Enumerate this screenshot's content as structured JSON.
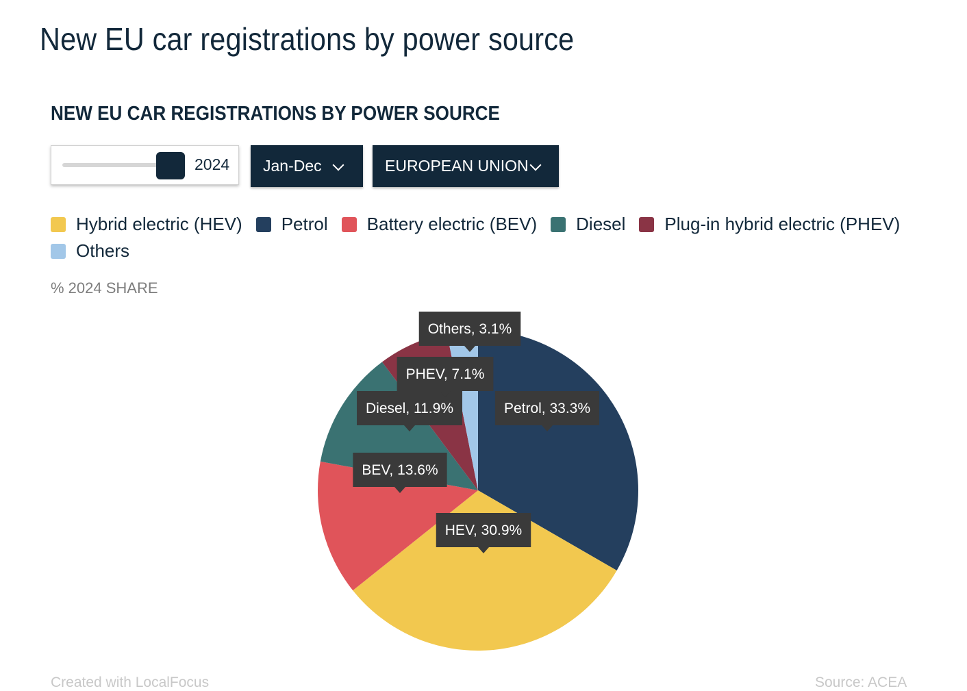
{
  "page": {
    "title": "New EU car registrations by power source"
  },
  "chart_title": "NEW EU CAR REGISTRATIONS BY POWER SOURCE",
  "controls": {
    "year_value": "2024",
    "period_label": "Jan-Dec",
    "region_label": "EUROPEAN UNION"
  },
  "legend": [
    {
      "label": "Hybrid electric (HEV)",
      "color": "#f2c84f"
    },
    {
      "label": "Petrol",
      "color": "#243f5e"
    },
    {
      "label": "Battery electric (BEV)",
      "color": "#e0545a"
    },
    {
      "label": "Diesel",
      "color": "#3a7272"
    },
    {
      "label": "Plug-in hybrid electric (PHEV)",
      "color": "#8a3445"
    },
    {
      "label": "Others",
      "color": "#a2c7e8"
    }
  ],
  "subtitle": "% 2024 SHARE",
  "chart_data": {
    "type": "pie",
    "unit": "%",
    "slices": [
      {
        "name": "Petrol",
        "value": 33.3,
        "label": "Petrol, 33.3%",
        "color": "#243f5e"
      },
      {
        "name": "Hybrid electric (HEV)",
        "value": 30.9,
        "label": "HEV, 30.9%",
        "color": "#f2c84f"
      },
      {
        "name": "Battery electric (BEV)",
        "value": 13.6,
        "label": "BEV, 13.6%",
        "color": "#e0545a"
      },
      {
        "name": "Diesel",
        "value": 11.9,
        "label": "Diesel, 11.9%",
        "color": "#3a7272"
      },
      {
        "name": "Plug-in hybrid electric (PHEV)",
        "value": 7.1,
        "label": "PHEV, 7.1%",
        "color": "#8a3445"
      },
      {
        "name": "Others",
        "value": 3.1,
        "label": "Others, 3.1%",
        "color": "#a2c7e8"
      }
    ]
  },
  "footer": {
    "credit": "Created with LocalFocus",
    "source": "Source: ACEA"
  }
}
